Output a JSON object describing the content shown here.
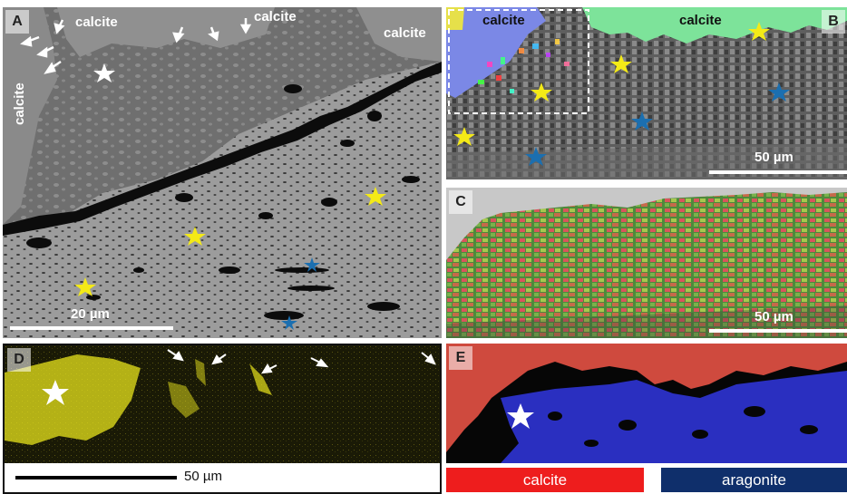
{
  "panels": {
    "a": {
      "label": "A",
      "calcite_labels": [
        "calcite",
        "calcite",
        "calcite",
        "calcite"
      ],
      "scale": "20 µm"
    },
    "b": {
      "label": "B",
      "calcite_labels": [
        "calcite",
        "calcite"
      ],
      "scale": "50 µm"
    },
    "c": {
      "label": "C",
      "scale": "50 µm"
    },
    "d": {
      "label": "D",
      "scale": "50 µm"
    },
    "e": {
      "label": "E",
      "legend": [
        {
          "name": "calcite",
          "color": "#ee1d1d"
        },
        {
          "name": "aragonite",
          "color": "#0f2f6b"
        }
      ]
    }
  },
  "colors": {
    "star_yellow": "#f4ea17",
    "star_blue": "#1b6fb0",
    "star_white": "#ffffff",
    "phase_calcite": "#cf4a3e",
    "phase_aragonite": "#2a2fc0",
    "yellow_map": "#e8e41c"
  }
}
